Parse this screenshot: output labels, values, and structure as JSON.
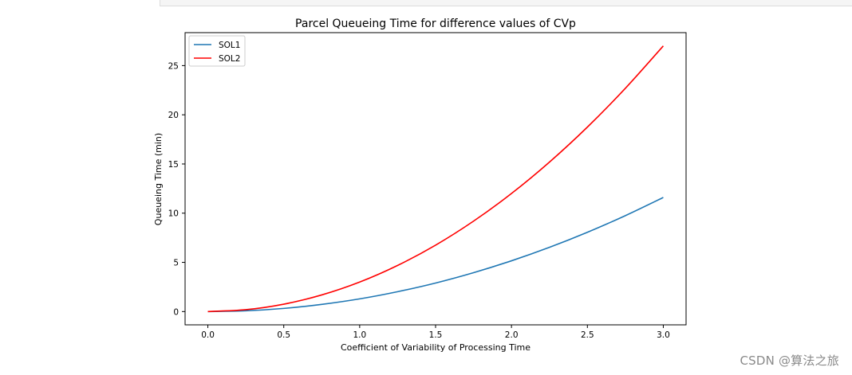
{
  "chart_data": {
    "type": "line",
    "title": "Parcel Queueing Time for difference values of CVp",
    "xlabel": "Coefficient of Variability of Processing Time",
    "ylabel": "Queueing Time (min)",
    "xlim": [
      -0.15,
      3.15
    ],
    "ylim": [
      -1.35,
      28.35
    ],
    "xticks": [
      0.0,
      0.5,
      1.0,
      1.5,
      2.0,
      2.5,
      3.0
    ],
    "xtick_labels": [
      "0.0",
      "0.5",
      "1.0",
      "1.5",
      "2.0",
      "2.5",
      "3.0"
    ],
    "yticks": [
      0,
      5,
      10,
      15,
      20,
      25
    ],
    "ytick_labels": [
      "0",
      "5",
      "10",
      "15",
      "20",
      "25"
    ],
    "legend_position": "top-left",
    "series": [
      {
        "name": "SOL1",
        "color": "#1f77b4",
        "x": [
          0.0,
          0.25,
          0.5,
          0.75,
          1.0,
          1.25,
          1.5,
          1.75,
          2.0,
          2.25,
          2.5,
          2.75,
          3.0
        ],
        "y": [
          0.0,
          0.08,
          0.32,
          0.73,
          1.29,
          2.02,
          2.9,
          3.95,
          5.16,
          6.53,
          8.06,
          9.75,
          11.6
        ]
      },
      {
        "name": "SOL2",
        "color": "#ff0000",
        "x": [
          0.0,
          0.25,
          0.5,
          0.75,
          1.0,
          1.25,
          1.5,
          1.75,
          2.0,
          2.25,
          2.5,
          2.75,
          3.0
        ],
        "y": [
          0.0,
          0.19,
          0.75,
          1.69,
          3.0,
          4.69,
          6.75,
          9.19,
          12.0,
          15.19,
          18.75,
          22.69,
          27.0
        ]
      }
    ]
  },
  "watermark": "CSDN @算法之旅"
}
